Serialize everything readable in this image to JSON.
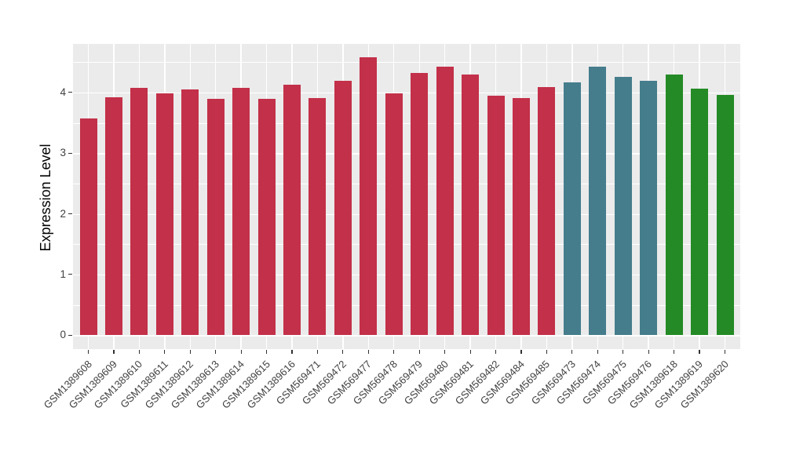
{
  "chart_data": {
    "type": "bar",
    "title": "",
    "xlabel": "",
    "ylabel": "Expression Level",
    "ylim": [
      0,
      4.8
    ],
    "yticks": [
      0,
      1,
      2,
      3,
      4
    ],
    "grid": "horizontal major+minor and vertical major white gridlines on gray panel",
    "legend_position": "none",
    "categories": [
      "GSM1389608",
      "GSM1389609",
      "GSM1389610",
      "GSM1389611",
      "GSM1389612",
      "GSM1389613",
      "GSM1389614",
      "GSM1389615",
      "GSM1389616",
      "GSM569471",
      "GSM569472",
      "GSM569477",
      "GSM569478",
      "GSM569479",
      "GSM569480",
      "GSM569481",
      "GSM569482",
      "GSM569484",
      "GSM569485",
      "GSM569473",
      "GSM569474",
      "GSM569475",
      "GSM569476",
      "GSM1389618",
      "GSM1389619",
      "GSM1389620"
    ],
    "values": [
      3.57,
      3.92,
      4.07,
      3.99,
      4.05,
      3.9,
      4.08,
      3.89,
      4.13,
      3.91,
      4.19,
      4.58,
      3.99,
      4.32,
      4.42,
      4.3,
      3.95,
      3.91,
      4.09,
      4.16,
      4.43,
      4.26,
      4.19,
      4.29,
      4.06,
      3.96
    ],
    "bar_group_keys": [
      "red",
      "red",
      "red",
      "red",
      "red",
      "red",
      "red",
      "red",
      "red",
      "red",
      "red",
      "red",
      "red",
      "red",
      "red",
      "red",
      "red",
      "red",
      "red",
      "teal",
      "teal",
      "teal",
      "teal",
      "green",
      "green",
      "green"
    ],
    "group_colors": {
      "red": "#C33049",
      "teal": "#457D8C",
      "green": "#248A25"
    }
  },
  "colors": {
    "figure_background": "#FFFFFF",
    "panel_background": "#EBEBEB",
    "gridline": "#FFFFFF",
    "axis_text": "#404040",
    "axis_title": "#000000",
    "tick_mark": "#333333"
  }
}
